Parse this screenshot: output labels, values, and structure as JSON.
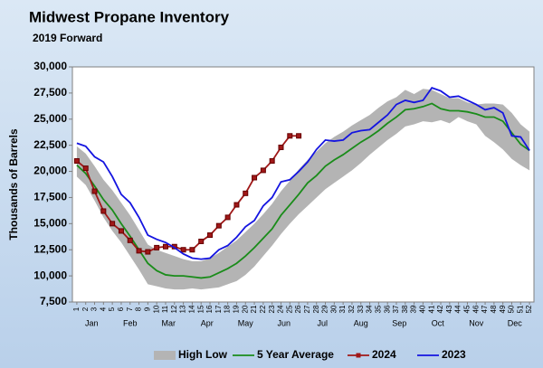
{
  "chart_data": {
    "type": "line",
    "title": "Midwest Propane Inventory",
    "subtitle": "2019 Forward",
    "y_label": "Thousands of Barrels",
    "x": [
      1,
      2,
      3,
      4,
      5,
      6,
      7,
      8,
      9,
      10,
      11,
      12,
      13,
      14,
      15,
      16,
      17,
      18,
      19,
      20,
      21,
      22,
      23,
      24,
      25,
      26,
      27,
      28,
      29,
      30,
      31,
      32,
      33,
      34,
      35,
      36,
      37,
      38,
      39,
      40,
      41,
      42,
      43,
      44,
      45,
      46,
      47,
      48,
      49,
      50,
      51,
      52
    ],
    "months": [
      "Jan",
      "Feb",
      "Mar",
      "Apr",
      "May",
      "Jun",
      "Jul",
      "Aug",
      "Sep",
      "Oct",
      "Nov",
      "Dec"
    ],
    "ylim": [
      7500,
      30000
    ],
    "yticks": [
      {
        "value": 7500,
        "label": "7,500"
      },
      {
        "value": 10000,
        "label": "10,000"
      },
      {
        "value": 12500,
        "label": "12,500"
      },
      {
        "value": 15000,
        "label": "15,000"
      },
      {
        "value": 17500,
        "label": "17,500"
      },
      {
        "value": 20000,
        "label": "20,000"
      },
      {
        "value": 22500,
        "label": "22,500"
      },
      {
        "value": 25000,
        "label": "25,000"
      },
      {
        "value": 27500,
        "label": "27,500"
      },
      {
        "value": 30000,
        "label": "30,000"
      }
    ],
    "series": [
      {
        "name": "High Low",
        "kind": "band",
        "color": "#b4b4b4",
        "high": [
          22400,
          21700,
          20500,
          19200,
          18200,
          17000,
          15800,
          14400,
          13000,
          12500,
          12200,
          11900,
          11600,
          11400,
          11400,
          11700,
          12200,
          12800,
          13400,
          14200,
          15000,
          15900,
          16900,
          18100,
          19100,
          20200,
          21100,
          21900,
          22700,
          23300,
          23800,
          24400,
          24900,
          25400,
          26100,
          26700,
          27100,
          27800,
          27400,
          27900,
          27800,
          27400,
          27000,
          27000,
          26600,
          26400,
          26500,
          26500,
          26400,
          25600,
          24500,
          23800
        ],
        "low": [
          19500,
          18700,
          17200,
          15600,
          14300,
          13200,
          11900,
          10600,
          9200,
          9000,
          8800,
          8700,
          8700,
          8800,
          8700,
          8800,
          8900,
          9200,
          9500,
          10100,
          10900,
          11900,
          12900,
          14000,
          15000,
          15900,
          16700,
          17500,
          18300,
          18900,
          19500,
          20100,
          20800,
          21600,
          22300,
          23000,
          23600,
          24300,
          24500,
          24800,
          24700,
          24900,
          24600,
          25200,
          24800,
          24500,
          23400,
          22800,
          22100,
          21200,
          20600,
          20100
        ]
      },
      {
        "name": "5 Year Average",
        "kind": "line",
        "color": "#1a8c1a",
        "values": [
          20600,
          19800,
          18600,
          17300,
          16300,
          15000,
          13800,
          12500,
          11200,
          10500,
          10100,
          10000,
          10000,
          9900,
          9800,
          9900,
          10300,
          10700,
          11200,
          11900,
          12700,
          13600,
          14500,
          15800,
          16800,
          17800,
          18900,
          19600,
          20500,
          21100,
          21600,
          22200,
          22800,
          23300,
          23900,
          24600,
          25200,
          25900,
          26000,
          26200,
          26500,
          26000,
          25800,
          25800,
          25700,
          25500,
          25200,
          25200,
          24800,
          23700,
          22600,
          22000
        ]
      },
      {
        "name": "2024",
        "kind": "marker-line",
        "color": "#a01818",
        "values": [
          21000,
          20300,
          18100,
          16200,
          15000,
          14300,
          13400,
          12400,
          12300,
          12700,
          12800,
          12800,
          12500,
          12500,
          13300,
          13900,
          14800,
          15600,
          16800,
          17900,
          19400,
          20100,
          21000,
          22300,
          23400,
          23400,
          null,
          null,
          null,
          null,
          null,
          null,
          null,
          null,
          null,
          null,
          null,
          null,
          null,
          null,
          null,
          null,
          null,
          null,
          null,
          null,
          null,
          null,
          null,
          null,
          null,
          null
        ]
      },
      {
        "name": "2023",
        "kind": "line",
        "color": "#1414e0",
        "values": [
          22700,
          22400,
          21400,
          20900,
          19500,
          17800,
          17000,
          15600,
          13900,
          13500,
          13200,
          12700,
          12100,
          11700,
          11600,
          11700,
          12500,
          12900,
          13700,
          14700,
          15300,
          16700,
          17500,
          19000,
          19200,
          20000,
          20900,
          22100,
          23000,
          22900,
          23000,
          23700,
          23900,
          24000,
          24700,
          25400,
          26400,
          26800,
          26600,
          26800,
          28000,
          27700,
          27100,
          27200,
          26800,
          26400,
          25900,
          26100,
          25600,
          23400,
          23300,
          22000
        ]
      }
    ]
  }
}
